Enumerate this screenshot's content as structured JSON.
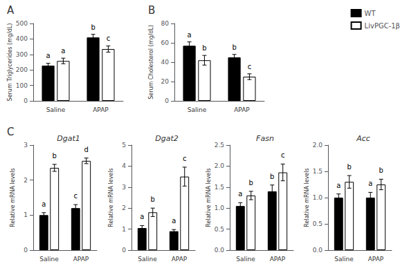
{
  "chart_data": [
    {
      "type": "bar",
      "panel_label": "A",
      "ylabel": "Serum Triglycerides (mg/dL)",
      "categories": [
        "Saline",
        "APAP"
      ],
      "series": [
        {
          "name": "WT",
          "color": "#000000",
          "values": [
            228,
            410
          ],
          "errors": [
            15,
            20
          ],
          "annotations": [
            "a",
            "b"
          ]
        },
        {
          "name": "LivPGC-1β",
          "color": "#ffffff",
          "values": [
            258,
            335
          ],
          "errors": [
            18,
            20
          ],
          "annotations": [
            "a",
            "c"
          ]
        }
      ],
      "ylim": [
        0,
        500
      ],
      "yticks": [
        0,
        100,
        200,
        300,
        400,
        500
      ],
      "grid": false
    },
    {
      "type": "bar",
      "panel_label": "B",
      "ylabel": "Serum Cholesterol (mg/dL)",
      "categories": [
        "Saline",
        "APAP"
      ],
      "series": [
        {
          "name": "WT",
          "color": "#000000",
          "values": [
            57,
            45
          ],
          "errors": [
            4,
            3
          ],
          "annotations": [
            "a",
            "b"
          ]
        },
        {
          "name": "LivPGC-1β",
          "color": "#ffffff",
          "values": [
            42,
            25
          ],
          "errors": [
            5,
            3
          ],
          "annotations": [
            "b",
            "c"
          ]
        }
      ],
      "ylim": [
        0,
        80
      ],
      "yticks": [
        0,
        20,
        40,
        60,
        80
      ],
      "grid": false,
      "legend": "upper right"
    },
    {
      "type": "bar",
      "panel_label": "C",
      "title": "Dgat1",
      "ylabel": "Relative mRNA levels",
      "categories": [
        "Saline",
        "APAP"
      ],
      "series": [
        {
          "name": "WT",
          "color": "#000000",
          "values": [
            1.0,
            1.2
          ],
          "errors": [
            0.07,
            0.1
          ],
          "annotations": [
            "a",
            "c"
          ]
        },
        {
          "name": "LivPGC-1β",
          "color": "#ffffff",
          "values": [
            2.35,
            2.55
          ],
          "errors": [
            0.1,
            0.08
          ],
          "annotations": [
            "b",
            "d"
          ]
        }
      ],
      "ylim": [
        0,
        3
      ],
      "yticks": [
        0,
        1,
        2,
        3
      ],
      "grid": false
    },
    {
      "type": "bar",
      "title": "Dgat2",
      "ylabel": "Relative mRNA levels",
      "categories": [
        "Saline",
        "APAP"
      ],
      "series": [
        {
          "name": "WT",
          "color": "#000000",
          "values": [
            1.05,
            0.9
          ],
          "errors": [
            0.12,
            0.08
          ],
          "annotations": [
            "a",
            "a"
          ]
        },
        {
          "name": "LivPGC-1β",
          "color": "#ffffff",
          "values": [
            1.8,
            3.5
          ],
          "errors": [
            0.2,
            0.45
          ],
          "annotations": [
            "b",
            "c"
          ]
        }
      ],
      "ylim": [
        0,
        5
      ],
      "yticks": [
        0,
        1,
        2,
        3,
        4,
        5
      ],
      "grid": false
    },
    {
      "type": "bar",
      "title": "Fasn",
      "ylabel": "Relative mRNA levels",
      "categories": [
        "Saline",
        "APAP"
      ],
      "series": [
        {
          "name": "WT",
          "color": "#000000",
          "values": [
            1.05,
            1.4
          ],
          "errors": [
            0.08,
            0.15
          ],
          "annotations": [
            "a",
            "b"
          ]
        },
        {
          "name": "LivPGC-1β",
          "color": "#ffffff",
          "values": [
            1.3,
            1.85
          ],
          "errors": [
            0.1,
            0.2
          ],
          "annotations": [
            "b",
            "c"
          ]
        }
      ],
      "ylim": [
        0,
        2.5
      ],
      "yticks": [
        {
          "value": 0,
          "label": "0.0"
        },
        0.5,
        {
          "value": 1,
          "label": "1.0"
        },
        1.5,
        {
          "value": 2,
          "label": "2.0"
        },
        2.5
      ],
      "grid": false
    },
    {
      "type": "bar",
      "title": "Acc",
      "ylabel": "Relative mRNA levels",
      "categories": [
        "Saline",
        "APAP"
      ],
      "series": [
        {
          "name": "WT",
          "color": "#000000",
          "values": [
            1.0,
            1.0
          ],
          "errors": [
            0.07,
            0.1
          ],
          "annotations": [
            "a",
            "a"
          ]
        },
        {
          "name": "LivPGC-1β",
          "color": "#ffffff",
          "values": [
            1.3,
            1.25
          ],
          "errors": [
            0.12,
            0.1
          ],
          "annotations": [
            "b",
            "b"
          ]
        }
      ],
      "ylim": [
        0,
        2.0
      ],
      "yticks": [
        {
          "value": 0,
          "label": "0.0"
        },
        0.5,
        {
          "value": 1,
          "label": "1.0"
        },
        1.5,
        {
          "value": 2,
          "label": "2.0"
        }
      ],
      "grid": false
    }
  ]
}
